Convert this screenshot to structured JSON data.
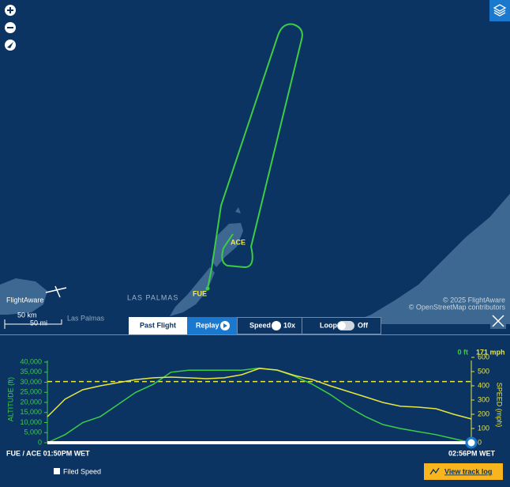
{
  "map": {
    "labels": {
      "city_upper": "LAS PALMAS",
      "city_lower": "Las Palmas",
      "origin": "FUE",
      "destination": "ACE"
    },
    "logo": "FlightAware",
    "scale_km": "50 km",
    "scale_mi": "50 mi",
    "copyright": "© 2025 FlightAware",
    "osm": "© OpenStreetMap contributors"
  },
  "toolbar": {
    "tab": "Past Flight",
    "replay": "Replay",
    "speed": "Speed",
    "speed_value": "10x",
    "loop": "Loop",
    "loop_state": "Off"
  },
  "chart_data": {
    "type": "line",
    "x_labels": [
      "FUE / ACE 01:50PM WET",
      "02:56PM WET"
    ],
    "ylabel": "ALTITUDE (ft)",
    "y2label": "SPEED (mph)",
    "current_altitude": "0 ft",
    "current_speed": "171 mph",
    "ylim": [
      0,
      40000
    ],
    "yticks": [
      0,
      {
        "value": 5000,
        "label": "5,000"
      },
      {
        "value": 10000,
        "label": "10,000"
      },
      {
        "value": 15000,
        "label": "15,000"
      },
      {
        "value": 20000,
        "label": "20,000"
      },
      {
        "value": 25000,
        "label": "25,000"
      },
      {
        "value": 30000,
        "label": "30,000"
      },
      {
        "value": 35000,
        "label": "35,000"
      },
      {
        "value": 40000,
        "label": "40,000"
      }
    ],
    "y2lim": [
      0,
      600
    ],
    "y2ticks": [
      0,
      100,
      200,
      300,
      400,
      500,
      600
    ],
    "series": [
      {
        "color": "#3dcc45",
        "values": [
          0,
          4000,
          10000,
          13000,
          19000,
          25000,
          29000,
          35000,
          36000,
          36000,
          36000,
          36000,
          37000,
          36000,
          33000,
          29000,
          24000,
          18000,
          13000,
          9000,
          7000,
          5500,
          4000,
          2000,
          0
        ]
      },
      {
        "color": "#e6e640",
        "axis": "y2",
        "values": [
          183,
          306,
          372,
          400,
          422,
          444,
          456,
          461,
          456,
          450,
          456,
          478,
          522,
          511,
          472,
          444,
          400,
          361,
          322,
          283,
          256,
          250,
          239,
          200,
          167
        ]
      }
    ],
    "filed_speed": {
      "name": "Filed Speed",
      "value": 430,
      "color": "#e6e640"
    },
    "button": "View track log"
  }
}
